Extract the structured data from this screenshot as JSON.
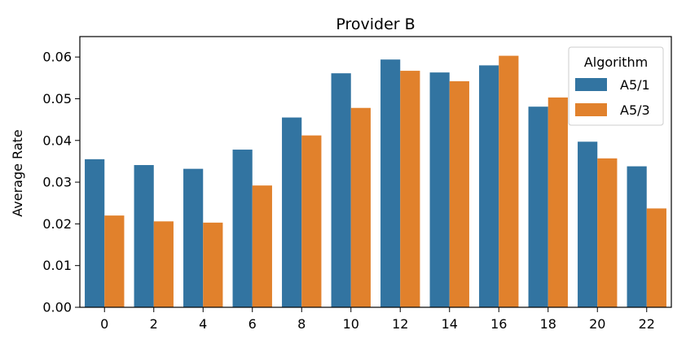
{
  "chart_data": {
    "type": "bar",
    "title": "Provider B",
    "xlabel": "",
    "ylabel": "Average Rate",
    "categories": [
      "0",
      "2",
      "4",
      "6",
      "8",
      "10",
      "12",
      "14",
      "16",
      "18",
      "20",
      "22"
    ],
    "series": [
      {
        "name": "A5/1",
        "color": "#3274a1",
        "values": [
          0.0355,
          0.0341,
          0.0332,
          0.0378,
          0.0455,
          0.0561,
          0.0594,
          0.0563,
          0.058,
          0.0481,
          0.0397,
          0.0338
        ]
      },
      {
        "name": "A5/3",
        "color": "#e1812c",
        "values": [
          0.022,
          0.0206,
          0.0203,
          0.0292,
          0.0412,
          0.0478,
          0.0567,
          0.0542,
          0.0603,
          0.0503,
          0.0357,
          0.0237
        ]
      }
    ],
    "ylim": [
      0,
      0.0649
    ],
    "yticks": [
      "0.00",
      "0.01",
      "0.02",
      "0.03",
      "0.04",
      "0.05",
      "0.06"
    ],
    "ytick_values": [
      0,
      0.01,
      0.02,
      0.03,
      0.04,
      0.05,
      0.06
    ],
    "grid": false,
    "legend": {
      "title": "Algorithm",
      "placement": "top-right"
    }
  }
}
